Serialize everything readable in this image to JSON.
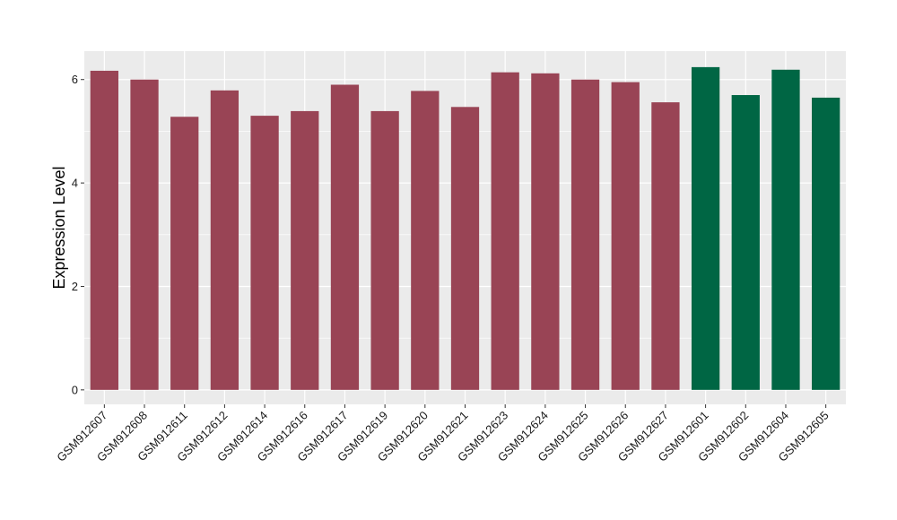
{
  "chart_data": {
    "type": "bar",
    "ylabel": "Expression Level",
    "xlabel": "",
    "ylim": [
      -0.28,
      6.55
    ],
    "yticks": [
      0,
      2,
      4,
      6
    ],
    "grid": true,
    "background": "#ebebeb",
    "categories": [
      "GSM912607",
      "GSM912608",
      "GSM912611",
      "GSM912612",
      "GSM912614",
      "GSM912616",
      "GSM912617",
      "GSM912619",
      "GSM912620",
      "GSM912621",
      "GSM912623",
      "GSM912624",
      "GSM912625",
      "GSM912626",
      "GSM912627",
      "GSM912601",
      "GSM912602",
      "GSM912604",
      "GSM912605"
    ],
    "values": [
      6.17,
      6.0,
      5.28,
      5.79,
      5.3,
      5.39,
      5.9,
      5.39,
      5.78,
      5.47,
      6.14,
      6.12,
      6.0,
      5.95,
      5.56,
      6.24,
      5.7,
      6.19,
      5.65
    ],
    "bar_colors": [
      "#994455",
      "#994455",
      "#994455",
      "#994455",
      "#994455",
      "#994455",
      "#994455",
      "#994455",
      "#994455",
      "#994455",
      "#994455",
      "#994455",
      "#994455",
      "#994455",
      "#994455",
      "#006644",
      "#006644",
      "#006644",
      "#006644"
    ]
  }
}
